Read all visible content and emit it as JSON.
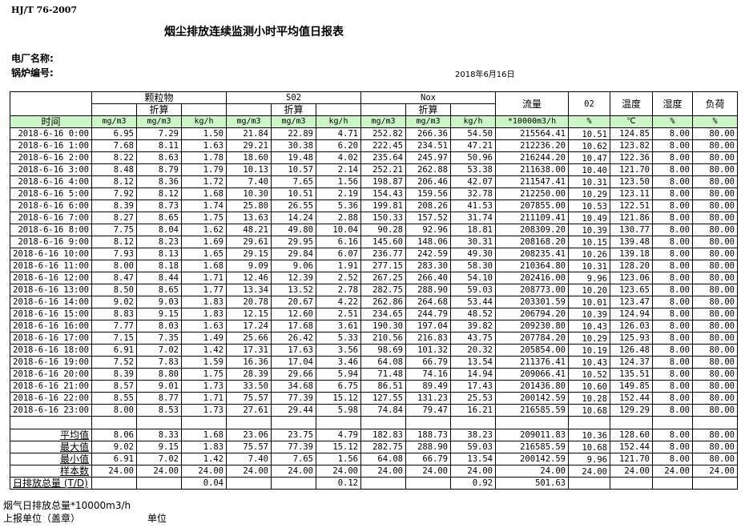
{
  "standard": "HJ/T  76-2007",
  "title": "烟尘排放连续监测小时平均值日报表",
  "plant_label": "电厂名称:",
  "boiler_label": "锅炉编号:",
  "date": "2018年6月16日",
  "header": {
    "time": "时间",
    "pm": "颗粒物",
    "so2": "S02",
    "nox": "Nox",
    "converted": "折算",
    "flow": "流量",
    "o2": "02",
    "temp": "温度",
    "humidity": "湿度",
    "load": "负荷",
    "units": [
      "mg/m3",
      "mg/m3",
      "kg/h",
      "mg/m3",
      "mg/m3",
      "kg/h",
      "mg/m3",
      "mg/m3",
      "kg/h",
      "*10000m3/h",
      "%",
      "℃",
      "%",
      "%"
    ]
  },
  "highlight_color": "#ccf5c8",
  "rows": [
    [
      "2018-6-16 0:00",
      "6.95",
      "7.29",
      "1.50",
      "21.84",
      "22.89",
      "4.71",
      "252.82",
      "266.36",
      "54.50",
      "215564.41",
      "10.51",
      "124.85",
      "8.00",
      "80.00"
    ],
    [
      "2018-6-16 1:00",
      "7.68",
      "8.11",
      "1.63",
      "29.21",
      "30.38",
      "6.20",
      "222.45",
      "234.51",
      "47.21",
      "212236.20",
      "10.62",
      "123.82",
      "8.00",
      "80.00"
    ],
    [
      "2018-6-16 2:00",
      "8.22",
      "8.63",
      "1.78",
      "18.60",
      "19.48",
      "4.02",
      "235.64",
      "245.97",
      "50.96",
      "216244.20",
      "10.47",
      "122.36",
      "8.00",
      "80.00"
    ],
    [
      "2018-6-16 3:00",
      "8.48",
      "8.79",
      "1.79",
      "10.13",
      "10.57",
      "2.14",
      "252.21",
      "262.88",
      "53.38",
      "211638.00",
      "10.40",
      "121.70",
      "8.00",
      "80.00"
    ],
    [
      "2018-6-16 4:00",
      "8.12",
      "8.36",
      "1.72",
      "7.40",
      "7.65",
      "1.56",
      "198.87",
      "206.46",
      "42.07",
      "211547.41",
      "10.31",
      "123.50",
      "8.00",
      "80.00"
    ],
    [
      "2018-6-16 5:00",
      "7.92",
      "8.12",
      "1.68",
      "10.30",
      "10.51",
      "2.19",
      "154.43",
      "159.56",
      "32.78",
      "212250.00",
      "10.29",
      "123.11",
      "8.00",
      "80.00"
    ],
    [
      "2018-6-16 6:00",
      "8.39",
      "8.73",
      "1.74",
      "25.80",
      "26.55",
      "5.36",
      "199.81",
      "208.26",
      "41.53",
      "207855.00",
      "10.53",
      "122.51",
      "8.00",
      "80.00"
    ],
    [
      "2018-6-16 7:00",
      "8.27",
      "8.65",
      "1.75",
      "13.63",
      "14.24",
      "2.88",
      "150.33",
      "157.52",
      "31.74",
      "211109.41",
      "10.49",
      "121.86",
      "8.00",
      "80.00"
    ],
    [
      "2018-6-16 8:00",
      "7.75",
      "8.04",
      "1.62",
      "48.21",
      "49.80",
      "10.04",
      "90.28",
      "92.96",
      "18.81",
      "208309.20",
      "10.39",
      "130.77",
      "8.00",
      "80.00"
    ],
    [
      "2018-6-16 9:00",
      "8.12",
      "8.23",
      "1.69",
      "29.61",
      "29.95",
      "6.16",
      "145.60",
      "148.06",
      "30.31",
      "208168.20",
      "10.15",
      "139.48",
      "8.00",
      "80.00"
    ],
    [
      "2018-6-16 10:00",
      "7.93",
      "8.13",
      "1.65",
      "29.15",
      "29.84",
      "6.07",
      "236.77",
      "242.59",
      "49.30",
      "208235.41",
      "10.26",
      "139.18",
      "8.00",
      "80.00"
    ],
    [
      "2018-6-16 11:00",
      "8.00",
      "8.18",
      "1.68",
      "9.09",
      "9.06",
      "1.91",
      "277.15",
      "283.30",
      "58.30",
      "210364.80",
      "10.31",
      "128.20",
      "8.00",
      "80.00"
    ],
    [
      "2018-6-16 12:00",
      "8.47",
      "8.44",
      "1.71",
      "12.46",
      "12.39",
      "2.52",
      "267.25",
      "266.40",
      "54.10",
      "202416.00",
      "9.96",
      "123.06",
      "8.00",
      "80.00"
    ],
    [
      "2018-6-16 13:00",
      "8.50",
      "8.65",
      "1.77",
      "13.34",
      "13.52",
      "2.78",
      "282.75",
      "288.90",
      "59.03",
      "208773.00",
      "10.20",
      "123.65",
      "8.00",
      "80.00"
    ],
    [
      "2018-6-16 14:00",
      "9.02",
      "9.03",
      "1.83",
      "20.78",
      "20.67",
      "4.22",
      "262.86",
      "264.68",
      "53.44",
      "203301.59",
      "10.01",
      "123.47",
      "8.00",
      "80.00"
    ],
    [
      "2018-6-16 15:00",
      "8.83",
      "9.15",
      "1.83",
      "12.15",
      "12.60",
      "2.51",
      "234.65",
      "244.79",
      "48.52",
      "206794.20",
      "10.39",
      "124.94",
      "8.00",
      "80.00"
    ],
    [
      "2018-6-16 16:00",
      "7.77",
      "8.03",
      "1.63",
      "17.24",
      "17.68",
      "3.61",
      "190.30",
      "197.04",
      "39.82",
      "209230.80",
      "10.43",
      "126.03",
      "8.00",
      "80.00"
    ],
    [
      "2018-6-16 17:00",
      "7.15",
      "7.35",
      "1.49",
      "25.66",
      "26.42",
      "5.33",
      "210.56",
      "216.83",
      "43.75",
      "207784.20",
      "10.29",
      "125.93",
      "8.00",
      "80.00"
    ],
    [
      "2018-6-16 18:00",
      "6.91",
      "7.02",
      "1.42",
      "17.31",
      "17.63",
      "3.56",
      "98.69",
      "101.32",
      "20.32",
      "205854.00",
      "10.19",
      "126.48",
      "8.00",
      "80.00"
    ],
    [
      "2018-6-16 19:00",
      "7.52",
      "7.83",
      "1.59",
      "16.36",
      "17.04",
      "3.46",
      "64.08",
      "66.79",
      "13.54",
      "211376.41",
      "10.43",
      "124.37",
      "8.00",
      "80.00"
    ],
    [
      "2018-6-16 20:00",
      "8.39",
      "8.80",
      "1.75",
      "28.39",
      "29.66",
      "5.94",
      "71.48",
      "74.16",
      "14.94",
      "209066.41",
      "10.52",
      "135.51",
      "8.00",
      "80.00"
    ],
    [
      "2018-6-16 21:00",
      "8.57",
      "9.01",
      "1.73",
      "33.50",
      "34.68",
      "6.75",
      "86.51",
      "89.49",
      "17.43",
      "201436.80",
      "10.60",
      "149.85",
      "8.00",
      "80.00"
    ],
    [
      "2018-6-16 22:00",
      "8.55",
      "8.77",
      "1.71",
      "75.57",
      "77.39",
      "15.12",
      "127.55",
      "131.23",
      "25.53",
      "200142.59",
      "10.28",
      "152.44",
      "8.00",
      "80.00"
    ],
    [
      "2018-6-16 23:00",
      "8.00",
      "8.53",
      "1.73",
      "27.61",
      "29.44",
      "5.98",
      "74.84",
      "79.47",
      "16.21",
      "216585.59",
      "10.68",
      "129.29",
      "8.00",
      "80.00"
    ]
  ],
  "summary": [
    [
      "平均值",
      "8.06",
      "8.33",
      "1.68",
      "23.06",
      "23.75",
      "4.79",
      "182.83",
      "188.73",
      "38.23",
      "209011.83",
      "10.36",
      "128.60",
      "8.00",
      "80.00"
    ],
    [
      "最大值",
      "9.02",
      "9.15",
      "1.83",
      "75.57",
      "77.39",
      "15.12",
      "282.75",
      "288.90",
      "59.03",
      "216585.59",
      "10.68",
      "152.44",
      "8.00",
      "80.00"
    ],
    [
      "最小值",
      "6.91",
      "7.02",
      "1.42",
      "7.40",
      "7.65",
      "1.56",
      "64.08",
      "66.79",
      "13.54",
      "200142.59",
      "9.96",
      "121.70",
      "8.00",
      "80.00"
    ],
    [
      "样本数",
      "24.00",
      "24.00",
      "24.00",
      "24.00",
      "24.00",
      "24.00",
      "24.00",
      "24.00",
      "24.00",
      "24.00",
      "24.00",
      "24.00",
      "24.00",
      "24.00"
    ]
  ],
  "daily_total": [
    "日排放总量 (T/D)",
    "",
    "",
    "0.04",
    "",
    "",
    "0.12",
    "",
    "",
    "0.92",
    "501.63",
    "",
    "",
    "",
    ""
  ],
  "footer": {
    "flue_gas_total": "烟气日排放总量*10000m3/h",
    "reporting_unit": "上报单位（盖章）",
    "unit": "单位"
  }
}
